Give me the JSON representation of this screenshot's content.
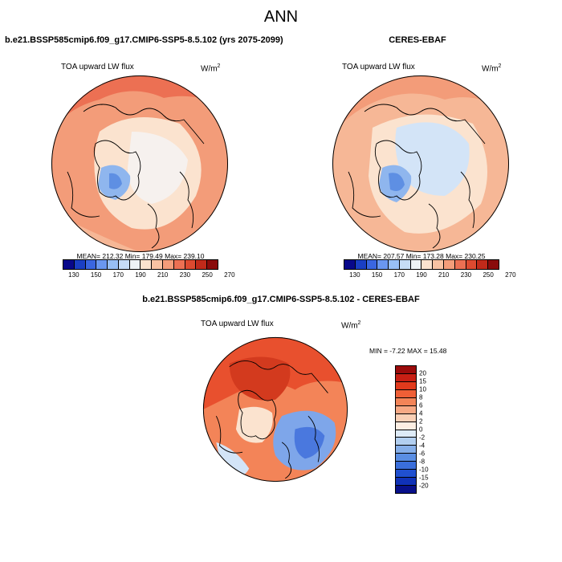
{
  "figure": {
    "title": "ANN",
    "diff_title": "b.e21.BSSP585cmip6.f09_g17.CMIP6-SSP5-8.5.102 - CERES-EBAF"
  },
  "panels": [
    {
      "title": "b.e21.BSSP585cmip6.f09_g17.CMIP6-SSP5-8.5.102 (yrs 2075-2099)",
      "variable": "TOA upward LW flux",
      "units_base": "W/m",
      "units_exp": "2",
      "stats": "MEAN= 212.32  Min= 179.49  Max= 239.10"
    },
    {
      "title": "CERES-EBAF",
      "variable": "TOA upward LW flux",
      "units_base": "W/m",
      "units_exp": "2",
      "stats": "MEAN= 207.57  Min= 173.28  Max= 230.25"
    },
    {
      "variable": "TOA upward LW flux",
      "units_base": "W/m",
      "units_exp": "2",
      "stats": "MIN =  -7.22 MAX =  15.48"
    }
  ],
  "colorbar_top": {
    "colors": [
      "#08088a",
      "#1a3fc4",
      "#3a66e0",
      "#6a97f0",
      "#98bff5",
      "#c6dcf6",
      "#eef3f6",
      "#fbe3cf",
      "#f8c3a3",
      "#f49d7a",
      "#ec7053",
      "#dd4a30",
      "#c02a1a",
      "#8a0b0b"
    ],
    "ticks": [
      "130",
      "150",
      "170",
      "190",
      "210",
      "230",
      "250",
      "270"
    ]
  },
  "colorbar_diff": {
    "colors": [
      "#9b0b0b",
      "#c81f14",
      "#e13a1c",
      "#ef5f36",
      "#f38458",
      "#f7a985",
      "#fad0b6",
      "#fdeee2",
      "#deebf7",
      "#b2cff0",
      "#86afe9",
      "#5a8ee3",
      "#3a6edb",
      "#2050d0",
      "#1032b8",
      "#08108a"
    ],
    "ticks": [
      "20",
      "15",
      "10",
      "8",
      "6",
      "4",
      "2",
      "0",
      "-2",
      "-4",
      "-6",
      "-8",
      "-10",
      "-15",
      "-20"
    ]
  },
  "map_colors": {
    "coast": "#000000",
    "warm_light": "#fbe3cf",
    "warm_mid": "#f6b796",
    "warm": "#f39c79",
    "warm_dark": "#ec7053",
    "neutral": "#f6f1ee",
    "cool_light": "#d3e4f7",
    "cool": "#8fb6ee",
    "cool_dark": "#5e8fe3",
    "diff_red": "#e8502e",
    "diff_red_dark": "#d33a1e",
    "diff_orange": "#f38458",
    "diff_blue": "#7ea6ea",
    "diff_blue_dark": "#4a78de"
  }
}
